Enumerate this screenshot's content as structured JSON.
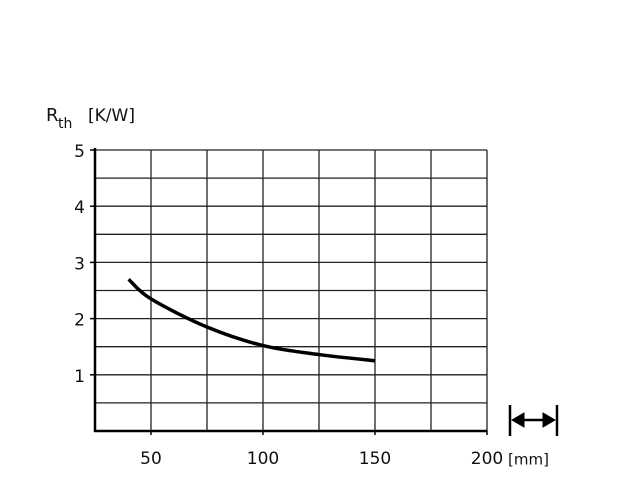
{
  "chart_data": {
    "type": "line",
    "y_label": {
      "symbol": "R",
      "subscript": "th",
      "unit": "[K/W]"
    },
    "x_unit": "[mm]",
    "x": [
      40,
      50,
      75,
      100,
      125,
      150
    ],
    "series": [
      {
        "color": "#000000",
        "values": [
          2.7,
          2.35,
          1.85,
          1.52,
          1.36,
          1.25
        ]
      }
    ],
    "xlim": [
      25,
      200
    ],
    "xticks": [
      50,
      100,
      150,
      200
    ],
    "ylim": [
      0,
      5
    ],
    "yticks": [
      1,
      2,
      3,
      4,
      5
    ],
    "grid": true,
    "grid_step": {
      "x": 25,
      "y": 0.5
    }
  }
}
